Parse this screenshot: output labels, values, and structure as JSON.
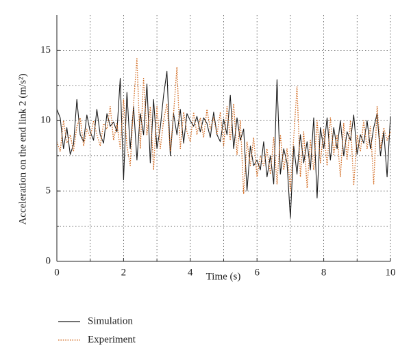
{
  "chart_data": {
    "type": "line",
    "xlabel": "Time (s)",
    "ylabel": "Acceleration on the end link 2 (m/s²)",
    "x": [
      0,
      0.1,
      0.2,
      0.3,
      0.4,
      0.5,
      0.6,
      0.7,
      0.8,
      0.9,
      1,
      1.1,
      1.2,
      1.3,
      1.4,
      1.5,
      1.6,
      1.7,
      1.8,
      1.9,
      2,
      2.1,
      2.2,
      2.3,
      2.4,
      2.5,
      2.6,
      2.7,
      2.8,
      2.9,
      3,
      3.1,
      3.2,
      3.3,
      3.4,
      3.5,
      3.6,
      3.7,
      3.8,
      3.9,
      4,
      4.1,
      4.2,
      4.3,
      4.4,
      4.5,
      4.6,
      4.7,
      4.8,
      4.9,
      5,
      5.1,
      5.2,
      5.3,
      5.4,
      5.5,
      5.6,
      5.7,
      5.8,
      5.9,
      6,
      6.1,
      6.2,
      6.3,
      6.4,
      6.5,
      6.6,
      6.7,
      6.8,
      6.9,
      7,
      7.1,
      7.2,
      7.3,
      7.4,
      7.5,
      7.6,
      7.7,
      7.8,
      7.9,
      8,
      8.1,
      8.2,
      8.3,
      8.4,
      8.5,
      8.6,
      8.7,
      8.8,
      8.9,
      9,
      9.1,
      9.2,
      9.3,
      9.4,
      9.5,
      9.6,
      9.7,
      9.8,
      9.9,
      10
    ],
    "series": [
      {
        "name": "Simulation",
        "color": "#1a1a1a",
        "dash": "solid",
        "values": [
          10.8,
          10.2,
          8.0,
          9.5,
          7.6,
          8.3,
          11.5,
          9.0,
          8.5,
          10.4,
          9.2,
          8.6,
          10.8,
          9.0,
          8.4,
          10.5,
          9.6,
          9.9,
          9.2,
          13.0,
          5.8,
          12.0,
          8.0,
          11.0,
          7.2,
          10.5,
          9.0,
          12.6,
          7.0,
          11.5,
          8.0,
          9.5,
          11.8,
          13.5,
          7.5,
          10.5,
          9.0,
          10.8,
          8.4,
          10.5,
          10.0,
          9.6,
          10.3,
          9.2,
          10.2,
          9.8,
          8.8,
          10.6,
          9.0,
          8.5,
          10.1,
          9.0,
          11.8,
          8.0,
          10.2,
          8.6,
          9.4,
          5.0,
          8.2,
          6.8,
          7.2,
          6.5,
          8.5,
          6.0,
          7.5,
          5.5,
          12.9,
          6.2,
          8.0,
          7.0,
          3.1,
          8.2,
          6.2,
          9.0,
          7.0,
          8.5,
          6.5,
          10.2,
          4.5,
          9.5,
          8.0,
          10.2,
          7.2,
          9.5,
          8.0,
          10.0,
          7.5,
          9.2,
          8.6,
          10.4,
          7.6,
          9.0,
          8.4,
          10.0,
          8.0,
          9.5,
          10.5,
          7.5,
          9.2,
          6.0,
          10.3
        ]
      },
      {
        "name": "Experiment",
        "color": "#d2691e",
        "dash": "dotted",
        "values": [
          8.5,
          7.8,
          10.0,
          8.4,
          9.0,
          7.8,
          9.6,
          10.2,
          8.2,
          9.4,
          8.8,
          10.0,
          9.0,
          8.2,
          9.8,
          9.4,
          11.0,
          8.6,
          9.8,
          8.0,
          11.5,
          8.2,
          6.8,
          11.2,
          14.4,
          8.0,
          13.0,
          9.0,
          11.0,
          6.5,
          11.0,
          8.0,
          10.0,
          11.2,
          7.8,
          10.5,
          13.8,
          8.0,
          10.6,
          9.2,
          8.5,
          10.6,
          9.0,
          10.2,
          8.8,
          10.8,
          9.4,
          10.2,
          9.0,
          10.6,
          8.2,
          11.0,
          8.6,
          11.2,
          7.6,
          10.0,
          4.8,
          8.5,
          6.8,
          8.8,
          6.0,
          7.5,
          6.8,
          8.0,
          6.2,
          8.8,
          5.5,
          9.0,
          6.5,
          8.0,
          5.0,
          8.8,
          12.4,
          6.0,
          9.2,
          5.2,
          8.6,
          6.5,
          10.0,
          7.0,
          9.4,
          6.8,
          10.2,
          7.6,
          9.0,
          6.0,
          9.8,
          7.2,
          10.0,
          5.4,
          9.0,
          7.8,
          10.0,
          8.0,
          9.6,
          5.5,
          11.0,
          8.0,
          9.5,
          8.6,
          9.2
        ]
      }
    ],
    "xlim": [
      0,
      10
    ],
    "xticks": [
      0,
      2,
      4,
      6,
      8,
      10
    ],
    "xminor": [
      1,
      3,
      5,
      7,
      9
    ],
    "ylim": [
      0,
      17.5
    ],
    "yticks": [
      0,
      5,
      10,
      15
    ],
    "yminor": [
      2.5,
      7.5,
      12.5
    ],
    "grid": true
  }
}
